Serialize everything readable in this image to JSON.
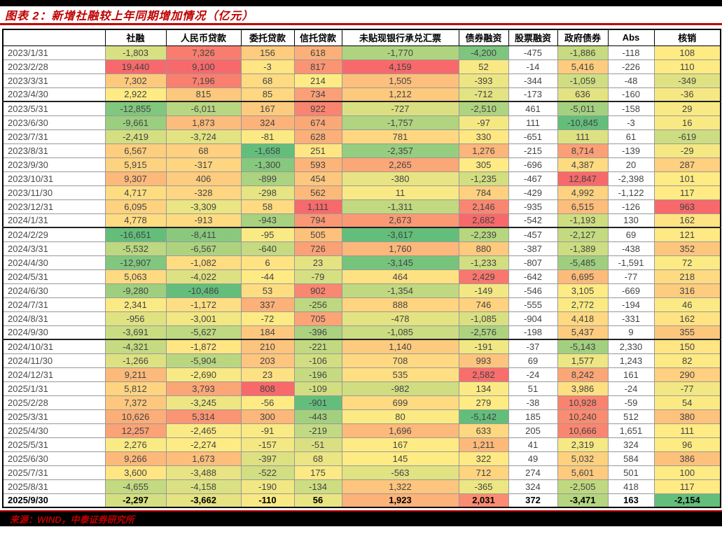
{
  "header": {
    "title": "图表 2：新增社融较上年同期增加情况（亿元）"
  },
  "footer": {
    "source": "来源：WIND，中泰证券研究所"
  },
  "colors": {
    "accent_red": "#C00000",
    "bar_black": "#000000",
    "scale_high_red": "#F8696B",
    "scale_mid_yellow": "#FFEB84",
    "scale_low_green": "#63BE7B",
    "gridline_gray": "#999999"
  },
  "chart_data": {
    "type": "table",
    "subtype": "heatmap",
    "title": "图表 2：新增社融较上年同期增加情况（亿元）",
    "value_unit": "亿元",
    "row_label_header": "",
    "color_scale": {
      "max_color": "#F8696B",
      "mid_color": "#FFEB84",
      "min_color": "#63BE7B",
      "midpoint": "median",
      "direction": "high-is-red",
      "scope": "per-column"
    },
    "columns": [
      {
        "label": "社融",
        "heatmap": true
      },
      {
        "label": "人民币贷款",
        "heatmap": true
      },
      {
        "label": "委托贷款",
        "heatmap": true
      },
      {
        "label": "信托贷款",
        "heatmap": true
      },
      {
        "label": "未贴现银行承兑汇票",
        "heatmap": true
      },
      {
        "label": "债券融资",
        "heatmap": true
      },
      {
        "label": "股票融资",
        "heatmap": false
      },
      {
        "label": "政府债券",
        "heatmap": true
      },
      {
        "label": "Abs",
        "heatmap": false
      },
      {
        "label": "核销",
        "heatmap": true
      }
    ],
    "rows": [
      {
        "date": "2023/1/31",
        "values": [
          -1803,
          7326,
          156,
          618,
          -1770,
          -4200,
          -475,
          -1886,
          -118,
          108
        ]
      },
      {
        "date": "2023/2/28",
        "values": [
          19440,
          9100,
          -3,
          817,
          4159,
          52,
          -14,
          5416,
          -226,
          110
        ]
      },
      {
        "date": "2023/3/31",
        "values": [
          7302,
          7196,
          68,
          214,
          1505,
          -393,
          -344,
          -1059,
          -48,
          -349
        ]
      },
      {
        "date": "2023/4/30",
        "values": [
          2922,
          815,
          85,
          734,
          1212,
          -712,
          -173,
          636,
          -160,
          -36
        ]
      },
      {
        "date": "2023/5/31",
        "values": [
          -12855,
          -6011,
          167,
          922,
          -727,
          -2510,
          461,
          -5011,
          -158,
          29
        ]
      },
      {
        "date": "2023/6/30",
        "values": [
          -9661,
          1873,
          324,
          674,
          -1757,
          -97,
          111,
          -10845,
          -3,
          16
        ]
      },
      {
        "date": "2023/7/31",
        "values": [
          -2419,
          -3724,
          -81,
          628,
          781,
          330,
          -651,
          111,
          61,
          -619
        ]
      },
      {
        "date": "2023/8/31",
        "values": [
          6567,
          68,
          -1658,
          251,
          -2357,
          1276,
          -215,
          8714,
          -139,
          -29
        ]
      },
      {
        "date": "2023/9/30",
        "values": [
          5915,
          -317,
          -1300,
          593,
          2265,
          305,
          -696,
          4387,
          20,
          287
        ]
      },
      {
        "date": "2023/10/31",
        "values": [
          9307,
          406,
          -899,
          454,
          -380,
          -1235,
          -467,
          12847,
          -2398,
          101
        ]
      },
      {
        "date": "2023/11/30",
        "values": [
          4717,
          -328,
          -298,
          562,
          11,
          784,
          -429,
          4992,
          -1122,
          117
        ]
      },
      {
        "date": "2023/12/31",
        "values": [
          6095,
          -3309,
          58,
          1111,
          -1311,
          2146,
          -935,
          6515,
          -126,
          963
        ]
      },
      {
        "date": "2024/1/31",
        "values": [
          4778,
          -913,
          -943,
          794,
          2673,
          2682,
          -542,
          -1193,
          130,
          162
        ]
      },
      {
        "date": "2024/2/29",
        "values": [
          -16651,
          -8411,
          -95,
          505,
          -3617,
          -2239,
          -457,
          -2127,
          69,
          121
        ]
      },
      {
        "date": "2024/3/31",
        "values": [
          -5532,
          -6567,
          -640,
          726,
          1760,
          880,
          -387,
          -1389,
          -438,
          352
        ]
      },
      {
        "date": "2024/4/30",
        "values": [
          -12907,
          -1082,
          6,
          23,
          -3145,
          -1233,
          -807,
          -5485,
          -1591,
          72
        ]
      },
      {
        "date": "2024/5/31",
        "values": [
          5063,
          -4022,
          -44,
          -79,
          464,
          2429,
          -642,
          6695,
          -77,
          218
        ]
      },
      {
        "date": "2024/6/30",
        "values": [
          -9280,
          -10486,
          53,
          902,
          -1354,
          -149,
          -546,
          3105,
          -669,
          316
        ]
      },
      {
        "date": "2024/7/31",
        "values": [
          2341,
          -1172,
          337,
          -256,
          888,
          746,
          -555,
          2772,
          -194,
          46
        ]
      },
      {
        "date": "2024/8/31",
        "values": [
          -956,
          -3001,
          -72,
          705,
          -478,
          -1085,
          -904,
          4418,
          -331,
          162
        ]
      },
      {
        "date": "2024/9/30",
        "values": [
          -3691,
          -5627,
          184,
          -396,
          -1085,
          -2576,
          -198,
          5437,
          9,
          355
        ]
      },
      {
        "date": "2024/10/31",
        "values": [
          -4321,
          -1872,
          210,
          -221,
          1140,
          -191,
          -37,
          -5143,
          2330,
          150
        ]
      },
      {
        "date": "2024/11/30",
        "values": [
          -1266,
          -5904,
          203,
          -106,
          708,
          993,
          69,
          1577,
          1243,
          82
        ]
      },
      {
        "date": "2024/12/31",
        "values": [
          9211,
          -2690,
          23,
          -196,
          535,
          2582,
          -24,
          8242,
          161,
          290
        ]
      },
      {
        "date": "2025/1/31",
        "values": [
          5812,
          3793,
          808,
          -109,
          -982,
          134,
          51,
          3986,
          -24,
          -77
        ]
      },
      {
        "date": "2025/2/28",
        "values": [
          7372,
          -3245,
          -56,
          -901,
          699,
          279,
          -38,
          10928,
          -59,
          54
        ]
      },
      {
        "date": "2025/3/31",
        "values": [
          10626,
          5314,
          300,
          -443,
          80,
          -5142,
          185,
          10240,
          512,
          380
        ]
      },
      {
        "date": "2025/4/30",
        "values": [
          12257,
          -2465,
          -91,
          -219,
          1696,
          633,
          205,
          10666,
          1651,
          111
        ]
      },
      {
        "date": "2025/5/31",
        "values": [
          2276,
          -2274,
          -157,
          -51,
          167,
          1211,
          41,
          2319,
          324,
          96
        ]
      },
      {
        "date": "2025/6/30",
        "values": [
          9266,
          1673,
          -397,
          68,
          145,
          322,
          49,
          5032,
          584,
          386
        ]
      },
      {
        "date": "2025/7/31",
        "values": [
          3600,
          -3488,
          -522,
          175,
          -563,
          712,
          274,
          5601,
          501,
          100
        ]
      },
      {
        "date": "2025/8/31",
        "values": [
          -4655,
          -4158,
          -190,
          -134,
          1322,
          -365,
          324,
          -2505,
          418,
          117
        ]
      },
      {
        "date": "2025/9/30",
        "values": [
          -2297,
          -3662,
          -110,
          56,
          1923,
          2031,
          372,
          -3471,
          163,
          -2154
        ]
      }
    ],
    "bold_rows": [
      "2025/9/30"
    ],
    "thick_divider_after": [
      "2023/4/30",
      "2024/1/31",
      "2024/9/30"
    ]
  }
}
